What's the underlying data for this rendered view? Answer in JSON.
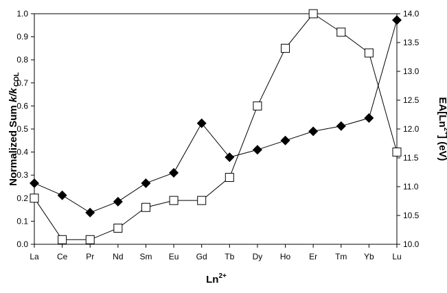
{
  "chart_data": {
    "type": "line",
    "categories": [
      "La",
      "Ce",
      "Pr",
      "Nd",
      "Sm",
      "Eu",
      "Gd",
      "Tb",
      "Dy",
      "Ho",
      "Er",
      "Tm",
      "Yb",
      "Lu"
    ],
    "series": [
      {
        "marker": "square",
        "color": "#000000",
        "axis": "y",
        "values": [
          0.2,
          0.02,
          0.02,
          0.07,
          0.16,
          0.19,
          0.19,
          0.29,
          0.6,
          0.85,
          1.0,
          0.92,
          0.83,
          0.4
        ]
      },
      {
        "marker": "diamond",
        "color": "#000000",
        "axis": "y2",
        "values": [
          11.06,
          10.85,
          10.55,
          10.74,
          11.06,
          11.24,
          12.1,
          11.51,
          11.64,
          11.8,
          11.96,
          12.05,
          12.19,
          13.89
        ]
      }
    ],
    "ylim": [
      0,
      1
    ],
    "yticks": [
      {
        "value": 0,
        "label": "0.0"
      },
      0.1,
      0.2,
      0.3,
      0.4,
      0.5,
      0.6,
      0.7,
      0.8,
      0.9,
      {
        "value": 1,
        "label": "1.0"
      }
    ],
    "y2lim": [
      10,
      14
    ],
    "y2ticks": [
      {
        "value": 10,
        "label": "10.0"
      },
      10.5,
      {
        "value": 11,
        "label": "11.0"
      },
      11.5,
      {
        "value": 12,
        "label": "12.0"
      },
      12.5,
      {
        "value": 13,
        "label": "13.0"
      },
      13.5,
      {
        "value": 14,
        "label": "14.0"
      }
    ],
    "xlabel": {
      "base": "Ln",
      "sup": "2+"
    },
    "ylabel": {
      "pre": "Normalized Sum ",
      "italic": "k/k",
      "sub": "COL"
    },
    "y2label": {
      "pre": "EA[Ln",
      "sup": "2+",
      "post": "] (eV)"
    },
    "grid": false
  }
}
